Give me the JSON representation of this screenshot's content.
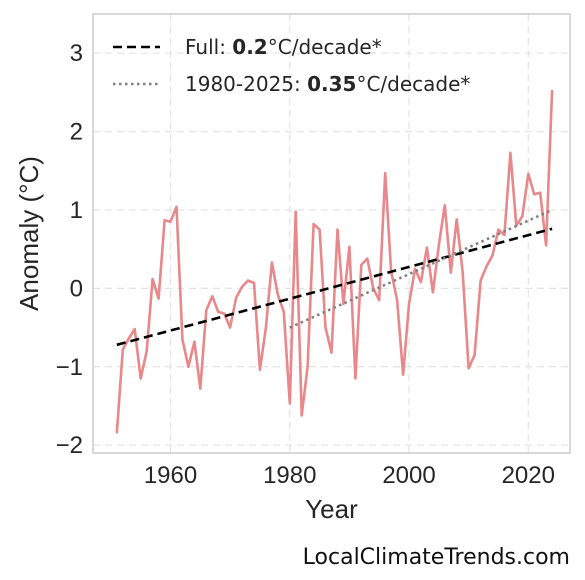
{
  "chart_data": {
    "type": "line",
    "xlabel": "Year",
    "ylabel": "Anomaly (°C)",
    "xlim": [
      1947,
      2027
    ],
    "ylim": [
      -2.1,
      3.5
    ],
    "x_ticks": [
      1960,
      1980,
      2000,
      2020
    ],
    "y_ticks": [
      -2,
      -1,
      0,
      1,
      2,
      3
    ],
    "y_tick_labels": [
      "−2",
      "−1",
      "0",
      "1",
      "2",
      "3"
    ],
    "grid": true,
    "legend_position": "top-left",
    "series": [
      {
        "color": "#e8888a",
        "x": [
          1951,
          1952,
          1953,
          1954,
          1955,
          1956,
          1957,
          1958,
          1959,
          1960,
          1961,
          1962,
          1963,
          1964,
          1965,
          1966,
          1967,
          1968,
          1969,
          1970,
          1971,
          1972,
          1973,
          1974,
          1975,
          1976,
          1977,
          1978,
          1979,
          1980,
          1981,
          1982,
          1983,
          1984,
          1985,
          1986,
          1987,
          1988,
          1989,
          1990,
          1991,
          1992,
          1993,
          1994,
          1995,
          1996,
          1997,
          1998,
          1999,
          2000,
          2001,
          2002,
          2003,
          2004,
          2005,
          2006,
          2007,
          2008,
          2009,
          2010,
          2011,
          2012,
          2013,
          2014,
          2015,
          2016,
          2017,
          2018,
          2019,
          2020,
          2021,
          2022,
          2023,
          2024
        ],
        "values": [
          -1.85,
          -0.78,
          -0.64,
          -0.52,
          -1.15,
          -0.8,
          0.12,
          -0.13,
          0.87,
          0.85,
          1.04,
          -0.65,
          -1.0,
          -0.68,
          -1.28,
          -0.28,
          -0.1,
          -0.3,
          -0.32,
          -0.5,
          -0.12,
          0.02,
          0.1,
          0.07,
          -1.04,
          -0.5,
          0.33,
          -0.08,
          -0.3,
          -1.47,
          0.98,
          -1.62,
          -1.0,
          0.82,
          0.75,
          -0.5,
          -0.82,
          0.75,
          -0.2,
          0.53,
          -1.15,
          0.3,
          0.38,
          0.0,
          -0.15,
          1.47,
          0.22,
          -0.15,
          -1.1,
          -0.2,
          0.25,
          0.08,
          0.52,
          -0.05,
          0.55,
          1.06,
          0.2,
          0.88,
          0.2,
          -1.02,
          -0.85,
          0.1,
          0.28,
          0.42,
          0.75,
          0.68,
          1.73,
          0.8,
          0.92,
          1.46,
          1.2,
          1.22,
          0.55,
          2.53
        ]
      }
    ],
    "trends": [
      {
        "label_prefix": "Full: ",
        "label_value": "0.2",
        "label_suffix": "°C/decade*",
        "style": "dashed",
        "color": "#000000",
        "x": [
          1951,
          2024
        ],
        "y": [
          -0.72,
          0.76
        ]
      },
      {
        "label_prefix": "1980-2025: ",
        "label_value": "0.35",
        "label_suffix": "°C/decade*",
        "style": "dotted",
        "color": "#808080",
        "x": [
          1980,
          2024
        ],
        "y": [
          -0.5,
          1.0
        ]
      }
    ]
  },
  "watermark": "LocalClimateTrends.com"
}
